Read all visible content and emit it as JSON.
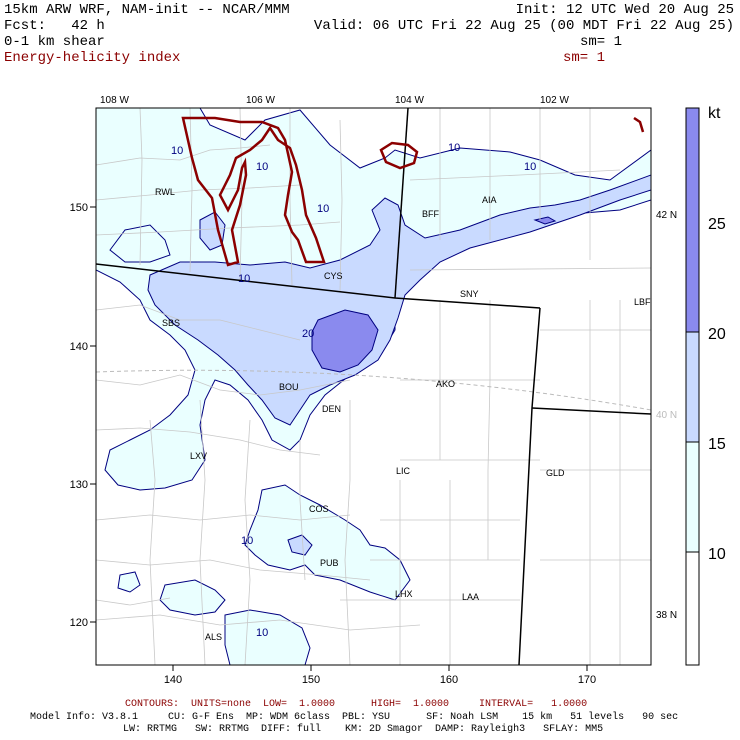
{
  "header": {
    "model": "15km ARW WRF, NAM-init -- NCAR/MMM",
    "fcst": "Fcst:   42 h",
    "field1": "0-1 km shear",
    "field2": "Energy-helicity index",
    "init": "Init: 12 UTC Wed 20 Aug 25",
    "valid": "Valid: 06 UTC Fri 22 Aug 25 (00 MDT Fri 22 Aug 25)",
    "sm1": "sm= 1",
    "sm2": "sm= 1"
  },
  "map": {
    "top_lon_labels": [
      "108 W",
      "106 W",
      "104 W",
      "102 W"
    ],
    "left_labels": [
      "150",
      "140",
      "130",
      "120"
    ],
    "bottom_labels": [
      "140",
      "150",
      "160",
      "170"
    ],
    "right_lat_labels": [
      "42 N",
      "40 N",
      "38 N"
    ],
    "cities": [
      "RWL",
      "BFF",
      "AIA",
      "CYS",
      "SNY",
      "LBF",
      "SBS",
      "AKO",
      "BOU",
      "DEN",
      "LXV",
      "LIC",
      "GLD",
      "COS",
      "PUB",
      "LHX",
      "LAA",
      "ALS"
    ],
    "contour_labels": [
      "10",
      "10",
      "10",
      "10",
      "10",
      "10",
      "20",
      "10",
      "10"
    ]
  },
  "colorbar": {
    "unit": "kt",
    "tick_labels": [
      "25",
      "20",
      "15",
      "10"
    ],
    "colors": [
      "#ffffff",
      "#eaffff",
      "#c9daff",
      "#8a8aee",
      "#ffffff"
    ]
  },
  "footer": {
    "contours_prefix": "CONTOURS:  UNITS=none  LOW=  1.0000      HIGH=  1.0000     INTERVAL=   1.0000",
    "line1": "Model Info: V3.8.1     CU: G-F Ens  MP: WDM 6class  PBL: YSU      SF: Noah LSM    15 km   51 levels   90 sec",
    "line2": "LW: RRTMG   SW: RRTMG  DIFF: full    KM: 2D Smagor  DAMP: Rayleigh3   SFLAY: MM5"
  },
  "style": {
    "shear_fill_10": "#eaffff",
    "shear_fill_15": "#c9daff",
    "shear_fill_20": "#8a8aee",
    "shear_contour": "#000080",
    "ehi_contour": "#8b0000"
  }
}
